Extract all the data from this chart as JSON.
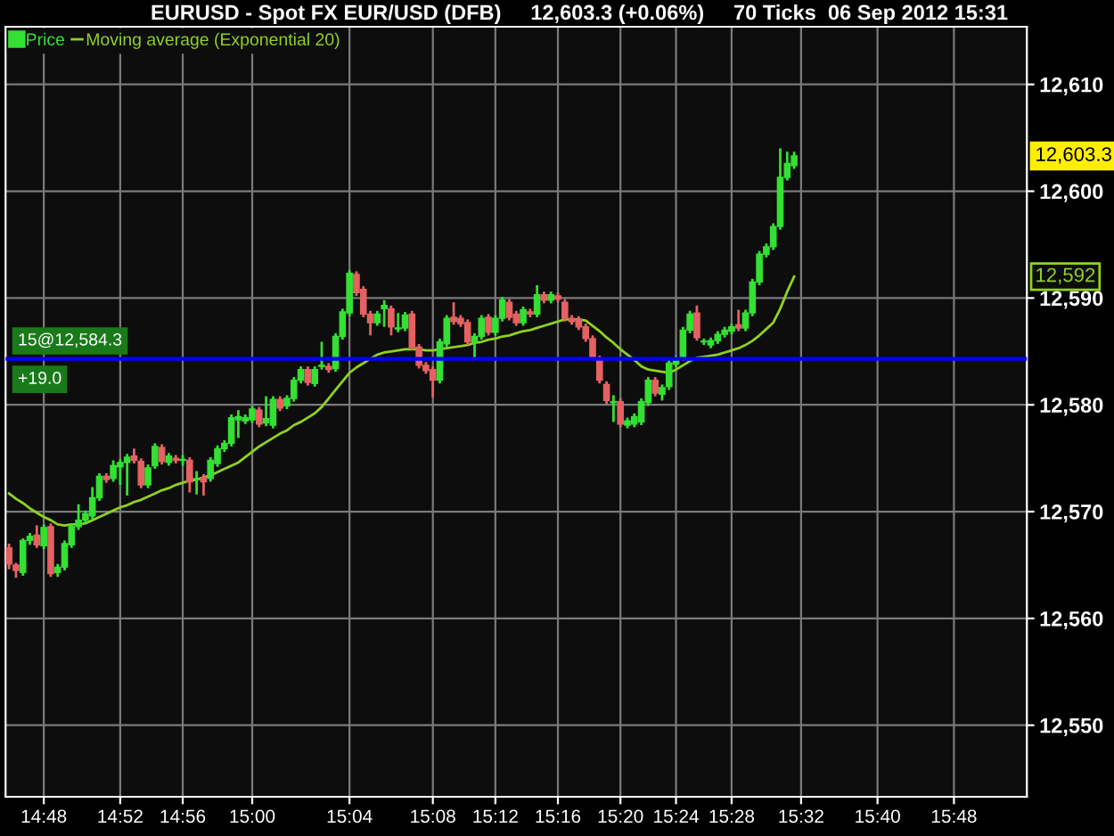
{
  "chart_data": {
    "type": "candlestick",
    "title": "EURUSD - Spot FX EUR/USD (DFB)     12,603.3 (+0.06%)     70 Ticks  06 Sep 2012 15:31",
    "categories": [
      null,
      null,
      null,
      null,
      null,
      "14:48",
      null,
      null,
      null,
      null,
      null,
      null,
      null,
      null,
      null,
      null,
      "14:52",
      null,
      null,
      null,
      null,
      null,
      null,
      null,
      null,
      "14:56",
      null,
      null,
      null,
      null,
      null,
      null,
      null,
      null,
      null,
      "15:00",
      null,
      null,
      null,
      null,
      null,
      null,
      null,
      null,
      null,
      null,
      null,
      null,
      null,
      "15:04",
      null,
      null,
      null,
      null,
      null,
      null,
      null,
      null,
      null,
      null,
      null,
      "15:08",
      null,
      null,
      null,
      null,
      null,
      null,
      null,
      null,
      "15:12",
      null,
      null,
      null,
      null,
      null,
      null,
      null,
      null,
      "15:16",
      null,
      null,
      null,
      null,
      null,
      null,
      null,
      null,
      "15:20",
      null,
      null,
      null,
      null,
      null,
      null,
      null,
      "15:24",
      null,
      null,
      null,
      null,
      null,
      null,
      null,
      "15:28",
      null,
      null,
      null,
      null,
      null,
      null,
      null,
      null,
      null,
      "15:32",
      null,
      null,
      null,
      null,
      null,
      null,
      null,
      null,
      null,
      null,
      "15:40",
      null,
      null,
      null,
      null,
      null,
      null,
      null,
      null,
      null,
      null,
      "15:48",
      null,
      null,
      null,
      null,
      null,
      null,
      null,
      null,
      null,
      null
    ],
    "series": [
      {
        "name": "Price",
        "colors": [
          "#e46262",
          "#e46262",
          "#33e033",
          "#33e033",
          "#e46262",
          "#33e033",
          "#e46262",
          "#33e033",
          "#33e033",
          "#33e033",
          "#33e033",
          "#33e033",
          "#33e033",
          "#33e033",
          "#e46262",
          "#33e033",
          "#33e033",
          "#33e033",
          "#e46262",
          "#e46262",
          "#33e033",
          "#33e033",
          "#e46262",
          "#33e033",
          "#e46262",
          "#33e033",
          "#e46262",
          "#33e033",
          "#e46262",
          "#33e033",
          "#33e033",
          "#33e033",
          "#33e033",
          "#33e033",
          "#33e033",
          "#33e033",
          "#e46262",
          "#33e033",
          "#33e033",
          "#e46262",
          "#33e033",
          "#33e033",
          "#33e033",
          "#e46262",
          "#33e033",
          "#33e033",
          "#e46262",
          "#33e033",
          "#33e033",
          "#33e033",
          "#e46262",
          "#e46262",
          "#e46262",
          "#33e033",
          "#33e033",
          "#e46262",
          "#33e033",
          "#33e033",
          "#e46262",
          "#e46262",
          "#e46262",
          "#e46262",
          "#33e033",
          "#33e033",
          "#e46262",
          "#e46262",
          "#e46262",
          "#33e033",
          "#33e033",
          "#e46262",
          "#33e033",
          "#33e033",
          "#e46262",
          "#e46262",
          "#33e033",
          "#e46262",
          "#33e033",
          "#e46262",
          "#33e033",
          "#e46262",
          "#e46262",
          "#e46262",
          "#e46262",
          "#e46262",
          "#e46262",
          "#e46262",
          "#e46262",
          "#33e033",
          "#e46262",
          "#33e033",
          "#33e033",
          "#33e033",
          "#33e033",
          "#e46262",
          "#33e033",
          "#33e033",
          "#33e033",
          "#33e033",
          "#33e033",
          "#e46262",
          "#33e033",
          "#33e033",
          "#33e033",
          "#33e033",
          "#33e033",
          "#e46262",
          "#33e033",
          "#33e033",
          "#33e033",
          "#33e033",
          "#33e033",
          "#33e033",
          "#33e033",
          "#33e033",
          null,
          null,
          null,
          null,
          null,
          null,
          null,
          null,
          null,
          null,
          null,
          null,
          null,
          null,
          null,
          null,
          null,
          null,
          null,
          null,
          null,
          null,
          null,
          null,
          null,
          null,
          null,
          null,
          null,
          null,
          null,
          null,
          null
        ],
        "ohlc": [
          [
            12566.6,
            12567.0,
            12564.6,
            12565.1
          ],
          [
            12565.0,
            12565.2,
            12563.8,
            12564.5
          ],
          [
            12564.3,
            12567.5,
            12564.0,
            12567.3
          ],
          [
            12567.3,
            12568.0,
            12566.9,
            12567.7
          ],
          [
            12567.8,
            12568.7,
            12566.6,
            12566.9
          ],
          [
            12566.8,
            12568.8,
            12566.5,
            12568.5
          ],
          [
            12568.6,
            12568.9,
            12563.9,
            12564.2
          ],
          [
            12564.3,
            12565.1,
            12563.9,
            12564.8
          ],
          [
            12564.8,
            12567.3,
            12564.5,
            12567.0
          ],
          [
            12566.9,
            12568.9,
            12566.6,
            12568.6
          ],
          [
            12568.6,
            12570.7,
            12568.3,
            12569.2
          ],
          [
            12569.2,
            12570.1,
            12568.9,
            12569.8
          ],
          [
            12569.6,
            12572.3,
            12569.3,
            12571.3
          ],
          [
            12571.3,
            12573.6,
            12571.0,
            12573.3
          ],
          [
            12573.3,
            12573.6,
            12572.7,
            12573.0
          ],
          [
            12573.1,
            12574.8,
            12572.8,
            12574.3
          ],
          [
            12574.2,
            12574.9,
            12572.5,
            12574.6
          ],
          [
            12574.6,
            12575.4,
            12571.5,
            12575.1
          ],
          [
            12575.2,
            12575.9,
            12574.5,
            12574.8
          ],
          [
            12574.7,
            12575.0,
            12572.2,
            12572.5
          ],
          [
            12572.5,
            12574.4,
            12572.2,
            12574.1
          ],
          [
            12574.3,
            12576.4,
            12574.0,
            12576.1
          ],
          [
            12576.0,
            12576.3,
            12574.4,
            12574.7
          ],
          [
            12574.6,
            12575.5,
            12574.3,
            12575.2
          ],
          [
            12575.0,
            12575.3,
            12574.5,
            12574.8
          ],
          [
            12574.8,
            12575.3,
            12574.3,
            12574.9
          ],
          [
            12574.8,
            12575.1,
            12571.8,
            12572.8
          ],
          [
            12573.0,
            12573.8,
            12571.6,
            12573.1
          ],
          [
            12573.2,
            12573.5,
            12571.5,
            12572.8
          ],
          [
            12573.1,
            12575.1,
            12572.8,
            12574.8
          ],
          [
            12574.5,
            12576.2,
            12574.2,
            12575.9
          ],
          [
            12575.9,
            12576.7,
            12575.6,
            12576.4
          ],
          [
            12576.4,
            12579.1,
            12576.1,
            12578.8
          ],
          [
            12578.6,
            12579.5,
            12576.9,
            12578.9
          ],
          [
            12578.5,
            12579.1,
            12578.2,
            12578.8
          ],
          [
            12578.6,
            12579.9,
            12578.3,
            12579.6
          ],
          [
            12579.5,
            12579.8,
            12577.9,
            12578.2
          ],
          [
            12578.3,
            12580.8,
            12578.0,
            12578.7
          ],
          [
            12578.1,
            12580.8,
            12577.8,
            12580.5
          ],
          [
            12580.5,
            12580.8,
            12579.4,
            12579.7
          ],
          [
            12579.9,
            12580.9,
            12579.6,
            12580.6
          ],
          [
            12580.6,
            12582.6,
            12580.3,
            12582.3
          ],
          [
            12582.3,
            12583.6,
            12582.0,
            12583.3
          ],
          [
            12583.3,
            12583.6,
            12581.8,
            12582.1
          ],
          [
            12582.0,
            12583.6,
            12581.7,
            12583.3
          ],
          [
            12583.6,
            12585.9,
            12583.3,
            12583.7
          ],
          [
            12583.6,
            12583.9,
            12583.0,
            12583.3
          ],
          [
            12583.4,
            12586.7,
            12583.1,
            12586.4
          ],
          [
            12586.4,
            12589.0,
            12586.1,
            12588.7
          ],
          [
            12588.6,
            12592.6,
            12588.3,
            12592.3
          ],
          [
            12592.2,
            12592.5,
            12590.2,
            12590.5
          ],
          [
            12590.8,
            12591.1,
            12588.2,
            12588.5
          ],
          [
            12588.5,
            12588.8,
            12586.5,
            12587.7
          ],
          [
            12587.7,
            12588.8,
            12587.4,
            12588.5
          ],
          [
            12589.0,
            12589.8,
            12587.3,
            12589.3
          ],
          [
            12589.0,
            12589.3,
            12586.5,
            12587.3
          ],
          [
            12587.1,
            12588.6,
            12586.8,
            12587.2
          ],
          [
            12587.2,
            12588.7,
            12586.9,
            12588.4
          ],
          [
            12588.5,
            12588.8,
            12585.1,
            12585.4
          ],
          [
            12585.4,
            12585.7,
            12583.4,
            12583.7
          ],
          [
            12583.7,
            12584.0,
            12582.9,
            12583.2
          ],
          [
            12583.3,
            12583.6,
            12580.7,
            12582.3
          ],
          [
            12582.3,
            12586.2,
            12582.0,
            12585.9
          ],
          [
            12585.7,
            12588.4,
            12585.4,
            12588.1
          ],
          [
            12588.2,
            12589.6,
            12587.5,
            12587.8
          ],
          [
            12588.1,
            12588.4,
            12587.3,
            12587.6
          ],
          [
            12587.7,
            12588.0,
            12585.6,
            12585.9
          ],
          [
            12585.9,
            12586.7,
            12584.2,
            12586.4
          ],
          [
            12586.4,
            12588.4,
            12586.1,
            12588.1
          ],
          [
            12588.2,
            12588.5,
            12586.5,
            12586.8
          ],
          [
            12586.8,
            12588.4,
            12586.5,
            12588.1
          ],
          [
            12588.1,
            12590.1,
            12587.8,
            12589.8
          ],
          [
            12589.6,
            12589.9,
            12587.9,
            12588.2
          ],
          [
            12588.5,
            12588.8,
            12587.4,
            12587.7
          ],
          [
            12587.7,
            12589.2,
            12587.4,
            12588.9
          ],
          [
            12588.7,
            12589.0,
            12588.2,
            12588.5
          ],
          [
            12588.5,
            12591.2,
            12588.2,
            12590.3
          ],
          [
            12590.3,
            12590.6,
            12589.5,
            12589.8
          ],
          [
            12589.8,
            12590.6,
            12589.5,
            12590.3
          ],
          [
            12590.2,
            12590.5,
            12589.6,
            12589.9
          ],
          [
            12589.6,
            12589.9,
            12587.8,
            12588.1
          ],
          [
            12588.1,
            12588.4,
            12587.5,
            12587.8
          ],
          [
            12588.0,
            12588.3,
            12587.0,
            12587.3
          ],
          [
            12587.3,
            12587.6,
            12585.9,
            12586.2
          ],
          [
            12586.2,
            12586.5,
            12584.2,
            12584.5
          ],
          [
            12584.3,
            12584.6,
            12582.0,
            12582.3
          ],
          [
            12581.9,
            12582.2,
            12580.1,
            12580.4
          ],
          [
            12580.2,
            12580.9,
            12578.4,
            12580.3
          ],
          [
            12580.3,
            12580.6,
            12577.9,
            12578.2
          ],
          [
            12578.1,
            12578.8,
            12577.8,
            12578.5
          ],
          [
            12578.2,
            12579.2,
            12577.9,
            12578.9
          ],
          [
            12578.4,
            12580.6,
            12578.1,
            12580.3
          ],
          [
            12580.2,
            12582.6,
            12579.9,
            12582.3
          ],
          [
            12582.3,
            12582.6,
            12580.8,
            12581.1
          ],
          [
            12581.0,
            12581.9,
            12580.4,
            12581.6
          ],
          [
            12581.7,
            12584.2,
            12581.4,
            12583.9
          ],
          [
            12583.8,
            12584.6,
            12583.5,
            12584.3
          ],
          [
            12584.4,
            12587.3,
            12584.1,
            12587.0
          ],
          [
            12587.0,
            12588.8,
            12586.7,
            12588.5
          ],
          [
            12588.6,
            12589.3,
            12586.0,
            12586.3
          ],
          [
            12585.9,
            12586.2,
            12585.6,
            12585.9
          ],
          [
            12585.6,
            12586.3,
            12585.3,
            12586.0
          ],
          [
            12586.0,
            12586.9,
            12585.7,
            12586.6
          ],
          [
            12586.6,
            12587.3,
            12586.3,
            12587.0
          ],
          [
            12586.9,
            12587.6,
            12586.6,
            12587.3
          ],
          [
            12587.5,
            12588.9,
            12586.9,
            12587.2
          ],
          [
            12587.2,
            12588.9,
            12586.9,
            12588.6
          ],
          [
            12588.6,
            12591.8,
            12588.3,
            12591.5
          ],
          [
            12591.5,
            12594.4,
            12591.2,
            12594.1
          ],
          [
            12594.1,
            12595.1,
            12593.8,
            12594.8
          ],
          [
            12594.8,
            12597.0,
            12594.5,
            12596.7
          ],
          [
            12596.7,
            12604.0,
            12596.4,
            12601.3
          ],
          [
            12601.3,
            12603.7,
            12601.0,
            12602.6
          ],
          [
            12602.4,
            12603.7,
            12602.1,
            12603.3
          ],
          null,
          null,
          null,
          null,
          null,
          null,
          null,
          null,
          null,
          null,
          null,
          null,
          null,
          null,
          null,
          null,
          null,
          null,
          null,
          null,
          null,
          null,
          null,
          null,
          null,
          null,
          null,
          null,
          null,
          null,
          null,
          null,
          null
        ]
      },
      {
        "name": "Moving average (Exponential 20)",
        "type": "line",
        "color": "#8fd21e",
        "values": [
          12571.7,
          12571.2,
          12570.8,
          12570.3,
          12569.9,
          12569.5,
          12569.2,
          12568.8,
          12568.7,
          12568.8,
          12568.8,
          12568.9,
          12569.2,
          12569.5,
          12569.8,
          12570.1,
          12570.4,
          12570.6,
          12570.9,
          12571.1,
          12571.4,
          12571.7,
          12572.0,
          12572.2,
          12572.5,
          12572.7,
          12572.9,
          12573.0,
          12573.2,
          12573.4,
          12573.7,
          12574.0,
          12574.3,
          12574.6,
          12575.1,
          12575.6,
          12576.1,
          12576.5,
          12576.9,
          12577.3,
          12577.6,
          12578.1,
          12578.4,
          12578.8,
          12579.2,
          12579.8,
          12580.6,
          12581.4,
          12582.2,
          12583.0,
          12583.5,
          12583.9,
          12584.3,
          12584.7,
          12584.9,
          12585.0,
          12585.1,
          12585.2,
          12585.2,
          12585.2,
          12585.1,
          12585.1,
          12585.2,
          12585.3,
          12585.4,
          12585.5,
          12585.6,
          12585.8,
          12585.9,
          12586.1,
          12586.2,
          12586.4,
          12586.5,
          12586.7,
          12586.9,
          12587.0,
          12587.2,
          12587.4,
          12587.6,
          12587.8,
          12588.0,
          12588.0,
          12588.0,
          12587.9,
          12587.4,
          12586.9,
          12586.3,
          12585.8,
          12585.2,
          12584.7,
          12584.2,
          12583.6,
          12583.3,
          12583.2,
          12583.1,
          12583.0,
          12583.3,
          12583.7,
          12584.1,
          12584.4,
          12584.5,
          12584.6,
          12584.7,
          12584.9,
          12585.1,
          12585.3,
          12585.6,
          12586.0,
          12586.5,
          12587.1,
          12587.7,
          12589.0,
          12590.6,
          12592.0,
          null,
          null,
          null,
          null,
          null,
          null,
          null,
          null,
          null,
          null,
          null,
          null,
          null,
          null,
          null,
          null,
          null,
          null,
          null,
          null,
          null,
          null,
          null,
          null,
          null,
          null,
          null,
          null,
          null,
          null,
          null,
          null,
          null
        ]
      }
    ],
    "ylim": [
      12543.3,
      12615.4
    ],
    "yticks": [
      {
        "value": 12550,
        "label": "12,550"
      },
      {
        "value": 12560,
        "label": "12,560"
      },
      {
        "value": 12570,
        "label": "12,570"
      },
      {
        "value": 12580,
        "label": "12,580"
      },
      {
        "value": 12590,
        "label": "12,590"
      },
      {
        "value": 12600,
        "label": "12,600"
      },
      {
        "value": 12610,
        "label": "12,610"
      }
    ],
    "ref_lines": [
      {
        "axis": "y",
        "value": 12584.3,
        "label": "15@12,584.3",
        "color": "#0000ff"
      }
    ],
    "annotations": [
      "+19.0",
      "12,603.3",
      "12,592"
    ],
    "grid": true,
    "legend": "top left"
  }
}
